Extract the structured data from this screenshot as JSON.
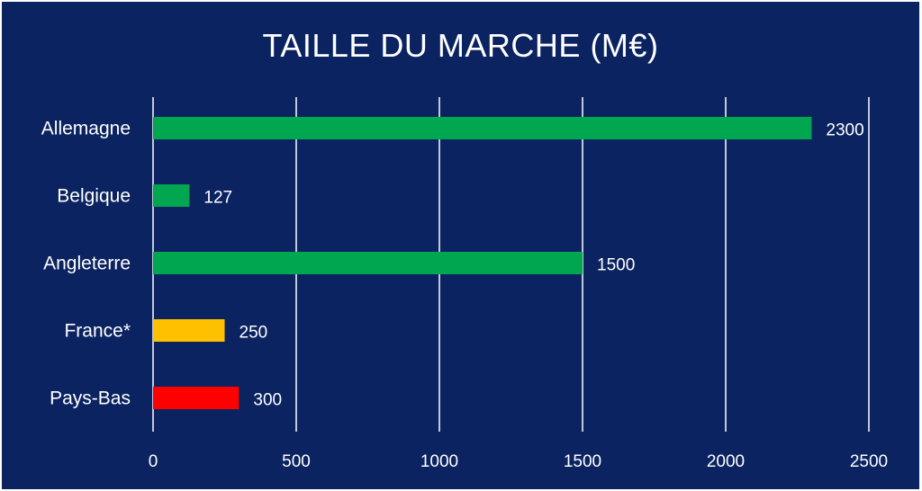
{
  "chart_data": {
    "type": "bar",
    "orientation": "horizontal",
    "title": "TAILLE DU MARCHE (M€)",
    "categories": [
      "Allemagne",
      "Belgique",
      "Angleterre",
      "France*",
      "Pays-Bas"
    ],
    "values": [
      2300,
      127,
      1500,
      250,
      300
    ],
    "bar_colors": [
      "#00a650",
      "#00a650",
      "#00a650",
      "#ffc000",
      "#ff0000"
    ],
    "xlim": [
      0,
      2500
    ],
    "x_ticks": [
      0,
      500,
      1000,
      1500,
      2000,
      2500
    ],
    "grid": true,
    "data_labels": true
  },
  "colors": {
    "background": "#0b2360",
    "text": "#ffffff",
    "gridline": "#ffffff"
  }
}
